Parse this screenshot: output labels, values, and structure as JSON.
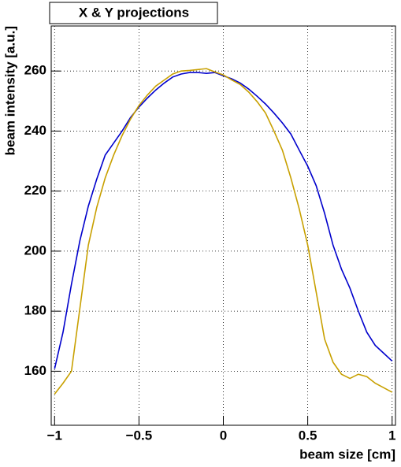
{
  "chart_data": {
    "type": "line",
    "title": "X & Y projections",
    "x_label": "beam size [cm]",
    "y_label": "beam intensity [a.u.]",
    "x": [
      -1.0,
      -0.95,
      -0.9,
      -0.85,
      -0.8,
      -0.75,
      -0.7,
      -0.65,
      -0.6,
      -0.55,
      -0.5,
      -0.45,
      -0.4,
      -0.35,
      -0.3,
      -0.25,
      -0.2,
      -0.15,
      -0.1,
      -0.05,
      0,
      0.05,
      0.1,
      0.15,
      0.2,
      0.25,
      0.3,
      0.35,
      0.4,
      0.45,
      0.5,
      0.55,
      0.6,
      0.65,
      0.7,
      0.75,
      0.8,
      0.85,
      0.9,
      0.95,
      1.0
    ],
    "series": [
      {
        "color": "#0000cc",
        "values": [
          160.8,
          173,
          189,
          203.5,
          215,
          224,
          232,
          236,
          240,
          244.5,
          248,
          251,
          253.7,
          256,
          258,
          259,
          259.5,
          259.5,
          259.2,
          259.5,
          258.4,
          257.4,
          256,
          254,
          251.6,
          249,
          246,
          242.7,
          239,
          233.6,
          228.3,
          221.8,
          212.6,
          202,
          194,
          187.7,
          180,
          173,
          168.6,
          166,
          163.4
        ]
      },
      {
        "color": "#c8a000",
        "values": [
          152.4,
          156,
          160,
          181,
          202,
          214.6,
          224.4,
          232,
          238.5,
          244,
          248.5,
          252,
          255,
          257,
          259,
          260,
          260.2,
          260.5,
          260.8,
          259.7,
          258.7,
          257,
          255.5,
          253,
          249.8,
          246,
          240,
          233.6,
          224.4,
          214,
          202,
          186.4,
          170.7,
          163,
          159,
          157.6,
          159,
          158.2,
          156,
          154.5,
          153
        ]
      }
    ],
    "xlim": [
      -1.02,
      1.02
    ],
    "ylim": [
      142,
      275
    ],
    "xticks": [
      {
        "value": -1,
        "label": "−1"
      },
      {
        "value": -0.5,
        "label": "−0.5"
      },
      0,
      0.5,
      1
    ],
    "yticks": [
      160,
      180,
      200,
      220,
      240,
      260
    ],
    "grid": true
  }
}
